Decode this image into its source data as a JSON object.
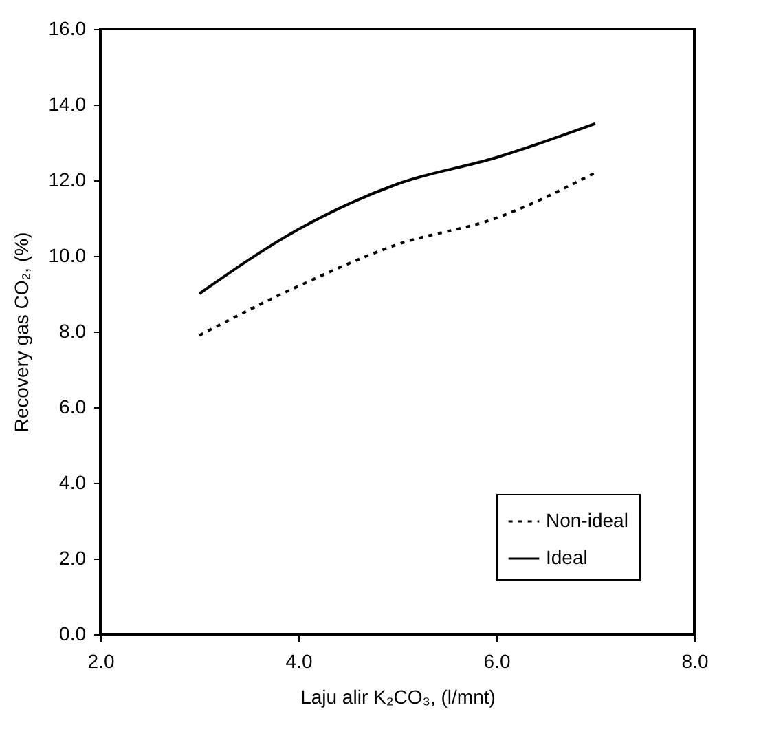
{
  "chart_data": {
    "type": "line",
    "xlabel": "Laju alir K₂CO₃, (l/mnt)",
    "ylabel": "Recovery gas CO₂, (%)",
    "x": [
      3,
      4,
      5,
      6,
      7
    ],
    "series": [
      {
        "name": "Non-ideal",
        "color": "#000000",
        "line_style": "dotted",
        "values": [
          7.9,
          9.2,
          10.3,
          11.0,
          12.2
        ]
      },
      {
        "name": "Ideal",
        "color": "#000000",
        "line_style": "solid",
        "values": [
          9.0,
          10.7,
          11.9,
          12.6,
          13.5
        ]
      }
    ],
    "xlim": [
      2,
      8
    ],
    "xticks": [
      {
        "value": 2,
        "label": "2.0"
      },
      {
        "value": 4,
        "label": "4.0"
      },
      {
        "value": 6,
        "label": "6.0"
      },
      {
        "value": 8,
        "label": "8.0"
      }
    ],
    "ylim": [
      0,
      16
    ],
    "yticks": [
      {
        "value": 0,
        "label": "0.0"
      },
      {
        "value": 2,
        "label": "2.0"
      },
      {
        "value": 4,
        "label": "4.0"
      },
      {
        "value": 6,
        "label": "6.0"
      },
      {
        "value": 8,
        "label": "8.0"
      },
      {
        "value": 10,
        "label": "10.0"
      },
      {
        "value": 12,
        "label": "12.0"
      },
      {
        "value": 14,
        "label": "14.0"
      },
      {
        "value": 16,
        "label": "16.0"
      }
    ],
    "grid": false,
    "legend": "bottom right",
    "marker": "none"
  }
}
